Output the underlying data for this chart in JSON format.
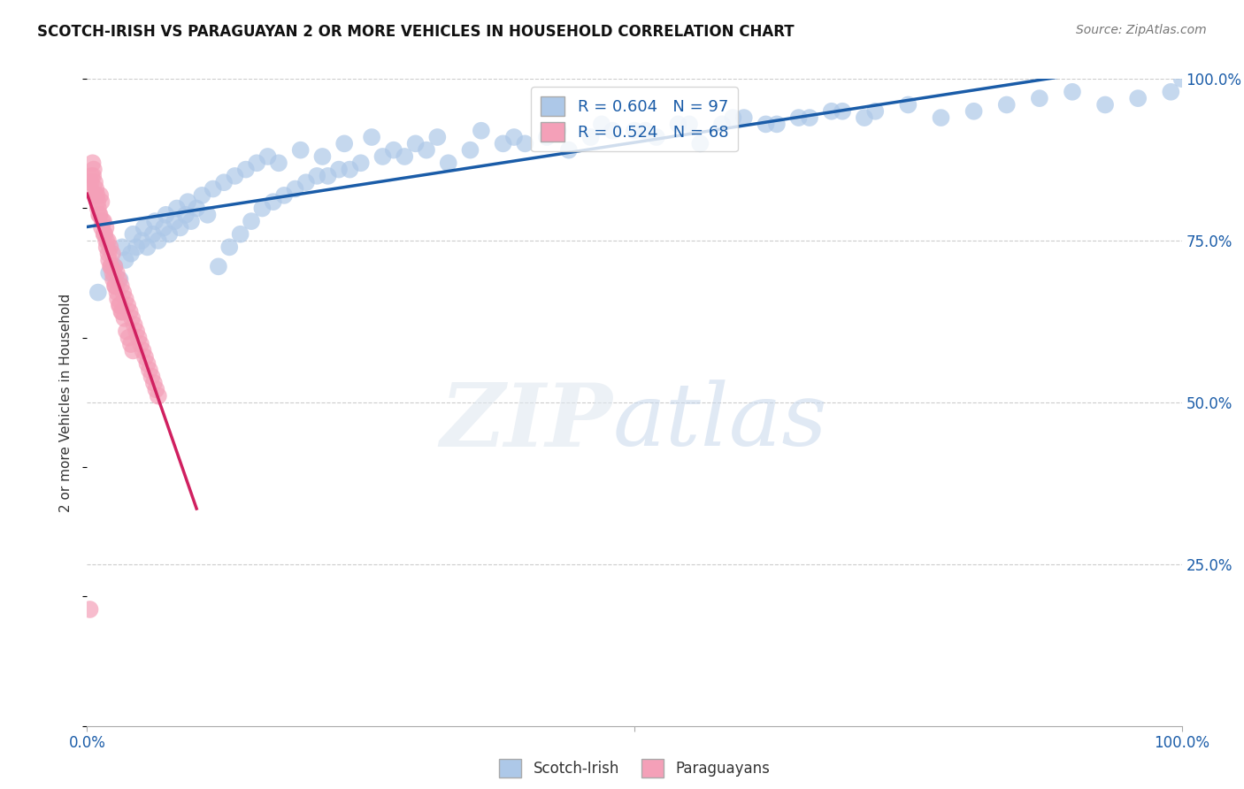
{
  "title": "SCOTCH-IRISH VS PARAGUAYAN 2 OR MORE VEHICLES IN HOUSEHOLD CORRELATION CHART",
  "source": "Source: ZipAtlas.com",
  "ylabel": "2 or more Vehicles in Household",
  "scotch_irish_R": 0.604,
  "scotch_irish_N": 97,
  "paraguayan_R": 0.524,
  "paraguayan_N": 68,
  "scotch_irish_color": "#adc8e8",
  "paraguayan_color": "#f4a0b8",
  "scotch_irish_line_color": "#1a5ca8",
  "paraguayan_line_color": "#d02060",
  "si_x": [
    1.0,
    2.0,
    2.5,
    3.0,
    3.5,
    4.0,
    4.5,
    5.0,
    5.5,
    6.0,
    6.5,
    7.0,
    7.5,
    8.0,
    8.5,
    9.0,
    9.5,
    10.0,
    11.0,
    12.0,
    13.0,
    14.0,
    15.0,
    16.0,
    17.0,
    18.0,
    19.0,
    20.0,
    21.0,
    22.0,
    23.0,
    24.0,
    25.0,
    27.0,
    29.0,
    31.0,
    33.0,
    35.0,
    38.0,
    40.0,
    42.0,
    44.0,
    46.0,
    48.0,
    50.0,
    52.0,
    54.0,
    56.0,
    58.0,
    60.0,
    63.0,
    66.0,
    69.0,
    72.0,
    75.0,
    78.0,
    81.0,
    84.0,
    87.0,
    90.0,
    93.0,
    96.0,
    99.0,
    3.2,
    4.2,
    5.2,
    6.2,
    7.2,
    8.2,
    9.2,
    10.5,
    11.5,
    12.5,
    13.5,
    14.5,
    15.5,
    16.5,
    17.5,
    19.5,
    21.5,
    23.5,
    26.0,
    28.0,
    30.0,
    32.0,
    36.0,
    39.0,
    43.0,
    47.0,
    51.0,
    55.0,
    59.0,
    62.0,
    65.0,
    68.0,
    71.0,
    100.0
  ],
  "si_y": [
    67,
    70,
    71,
    69,
    72,
    73,
    74,
    75,
    74,
    76,
    75,
    77,
    76,
    78,
    77,
    79,
    78,
    80,
    79,
    71,
    74,
    76,
    78,
    80,
    81,
    82,
    83,
    84,
    85,
    85,
    86,
    86,
    87,
    88,
    88,
    89,
    87,
    89,
    90,
    90,
    91,
    89,
    91,
    92,
    92,
    91,
    93,
    90,
    93,
    94,
    93,
    94,
    95,
    95,
    96,
    94,
    95,
    96,
    97,
    98,
    96,
    97,
    98,
    74,
    76,
    77,
    78,
    79,
    80,
    81,
    82,
    83,
    84,
    85,
    86,
    87,
    88,
    87,
    89,
    88,
    90,
    91,
    89,
    90,
    91,
    92,
    91,
    92,
    93,
    92,
    93,
    94,
    93,
    94,
    95,
    94,
    100
  ],
  "par_x": [
    0.3,
    0.5,
    0.7,
    0.9,
    1.1,
    1.3,
    1.5,
    1.7,
    1.9,
    2.1,
    2.3,
    2.5,
    2.7,
    2.9,
    3.1,
    3.3,
    3.5,
    3.7,
    3.9,
    4.1,
    4.3,
    4.5,
    4.7,
    4.9,
    5.1,
    5.3,
    5.5,
    5.7,
    5.9,
    6.1,
    6.3,
    6.5,
    0.4,
    0.6,
    0.8,
    1.0,
    1.2,
    1.4,
    1.6,
    1.8,
    2.0,
    2.2,
    2.4,
    2.6,
    2.8,
    3.0,
    3.2,
    3.4,
    3.6,
    3.8,
    4.0,
    4.2,
    0.35,
    0.55,
    0.75,
    0.95,
    1.15,
    1.35,
    1.55,
    1.75,
    1.95,
    2.15,
    2.35,
    2.55,
    2.75,
    2.95,
    3.15,
    0.25
  ],
  "par_y": [
    83,
    87,
    84,
    82,
    79,
    81,
    78,
    77,
    75,
    74,
    73,
    71,
    70,
    69,
    68,
    67,
    66,
    65,
    64,
    63,
    62,
    61,
    60,
    59,
    58,
    57,
    56,
    55,
    54,
    53,
    52,
    51,
    85,
    86,
    83,
    80,
    82,
    78,
    76,
    74,
    72,
    71,
    69,
    68,
    66,
    65,
    64,
    63,
    61,
    60,
    59,
    58,
    84,
    85,
    82,
    81,
    79,
    77,
    76,
    75,
    73,
    71,
    70,
    68,
    67,
    65,
    64,
    18
  ]
}
